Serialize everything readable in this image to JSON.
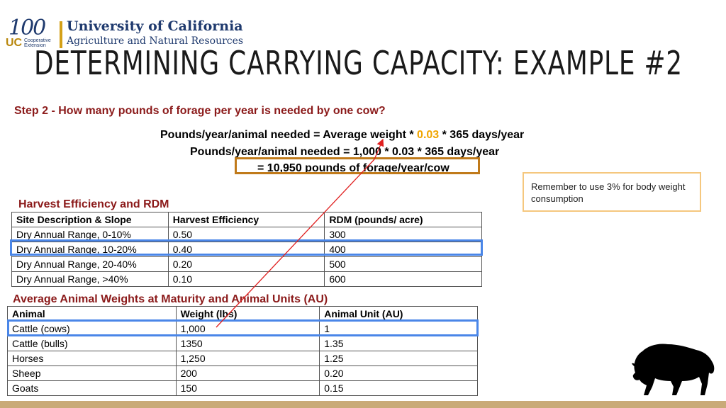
{
  "logo": {
    "number": "100",
    "uc": "UC",
    "coop_line1": "Cooperative",
    "coop_line2": "Extension",
    "university": "University of California",
    "division": "Agriculture and Natural Resources"
  },
  "title": "DETERMINING CARRYING CAPACITY: EXAMPLE #2",
  "step": "Step 2 - How many pounds of forage per year is needed by one cow?",
  "formula": {
    "line1_pre": "Pounds/year/animal needed = Average weight * ",
    "line1_accent": "0.03",
    "line1_post": " * 365 days/year",
    "line2": "Pounds/year/animal needed = 1,000 * 0.03 * 365 days/year",
    "line3": "= 10,950 pounds of forage/year/cow"
  },
  "note": "Remember to use 3% for body weight consumption",
  "harvest": {
    "title": "Harvest Efficiency and RDM",
    "headers": [
      "Site Description & Slope",
      "Harvest Efficiency",
      "RDM (pounds/ acre)"
    ],
    "rows": [
      [
        "Dry Annual Range, 0-10%",
        "0.50",
        "300"
      ],
      [
        "Dry Annual Range, 10-20%",
        "0.40",
        "400"
      ],
      [
        "Dry Annual Range, 20-40%",
        "0.20",
        "500"
      ],
      [
        "Dry Annual Range, >40%",
        "0.10",
        "600"
      ]
    ]
  },
  "animals": {
    "title": "Average Animal Weights at Maturity and Animal Units (AU)",
    "headers": [
      "Animal",
      "Weight (lbs)",
      "Animal Unit (AU)"
    ],
    "rows": [
      [
        "Cattle (cows)",
        "1,000",
        "1"
      ],
      [
        "Cattle (bulls)",
        "1350",
        "1.35"
      ],
      [
        "Horses",
        "1,250",
        "1.25"
      ],
      [
        "Sheep",
        "200",
        "0.20"
      ],
      [
        "Goats",
        "150",
        "0.15"
      ]
    ]
  },
  "colors": {
    "accent": "#f0a500",
    "section_title": "#8b1a1a",
    "result_box": "#c07a1a",
    "highlight": "#4a86e8",
    "arrow": "#e02020",
    "bottom_bar": "#c9aa78"
  },
  "icons": [
    "bison-icon"
  ]
}
